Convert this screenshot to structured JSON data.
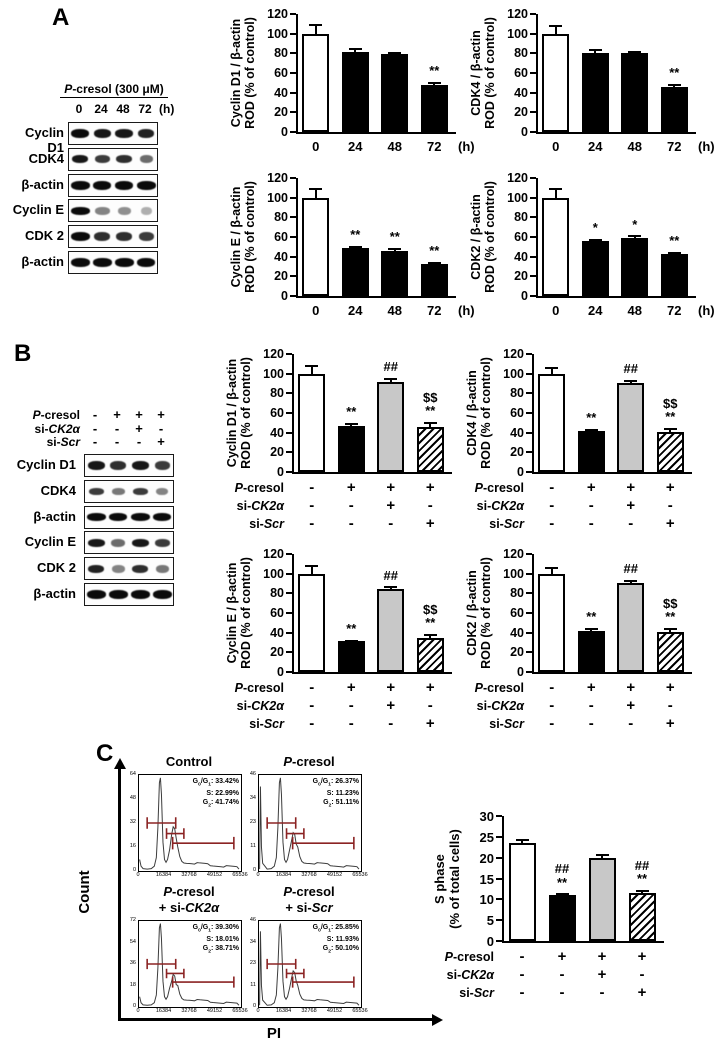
{
  "panel_a": {
    "label": "A",
    "blot": {
      "header": "P-cresol (300 μM)",
      "time_ticks": [
        "0",
        "24",
        "48",
        "72"
      ],
      "time_unit": "(h)",
      "rows": [
        "Cyclin D1",
        "CDK4",
        "β-actin",
        "Cyclin E",
        "CDK 2",
        "β-actin"
      ]
    }
  },
  "panel_b": {
    "label": "B",
    "blot": {
      "treatments": [
        {
          "label": "P-cresol",
          "cells": [
            "-",
            "+",
            "+",
            "+"
          ]
        },
        {
          "label": "si-CK2α",
          "cells": [
            "-",
            "-",
            "+",
            "-"
          ]
        },
        {
          "label": "si-Scr",
          "cells": [
            "-",
            "-",
            "-",
            "+"
          ]
        }
      ],
      "rows": [
        "Cyclin D1",
        "CDK4",
        "β-actin",
        "Cyclin E",
        "CDK 2",
        "β-actin"
      ]
    }
  },
  "panel_c": {
    "label": "C",
    "flow_xlabel": "PI",
    "flow_ylabel": "Count"
  },
  "chart_data": [
    {
      "id": "a-cyclin-d1",
      "panel": "A",
      "type": "bar",
      "ylabel": [
        "Cyclin D1 / β-actin",
        "ROD (% of control)"
      ],
      "ylim": [
        0,
        120
      ],
      "ytick_step": 20,
      "x_axis": {
        "type": "time",
        "ticks": [
          "0",
          "24",
          "48",
          "72"
        ],
        "unit": "(h)"
      },
      "bars": [
        {
          "value": 100,
          "err": 10,
          "fill": "white",
          "sig": []
        },
        {
          "value": 81,
          "err": 4,
          "fill": "black",
          "sig": []
        },
        {
          "value": 79,
          "err": 2,
          "fill": "black",
          "sig": []
        },
        {
          "value": 48,
          "err": 3,
          "fill": "black",
          "sig": [
            "**"
          ]
        }
      ]
    },
    {
      "id": "a-cdk4",
      "panel": "A",
      "type": "bar",
      "ylabel": [
        "CDK4 / β-actin",
        "ROD (% of control)"
      ],
      "ylim": [
        0,
        120
      ],
      "ytick_step": 20,
      "x_axis": {
        "type": "time",
        "ticks": [
          "0",
          "24",
          "48",
          "72"
        ],
        "unit": "(h)"
      },
      "bars": [
        {
          "value": 100,
          "err": 9,
          "fill": "white",
          "sig": []
        },
        {
          "value": 80,
          "err": 4,
          "fill": "black",
          "sig": []
        },
        {
          "value": 80,
          "err": 2,
          "fill": "black",
          "sig": []
        },
        {
          "value": 46,
          "err": 3,
          "fill": "black",
          "sig": [
            "**"
          ]
        }
      ]
    },
    {
      "id": "a-cyclin-e",
      "panel": "A",
      "type": "bar",
      "ylabel": [
        "Cyclin E / β-actin",
        "ROD (% of control)"
      ],
      "ylim": [
        0,
        120
      ],
      "ytick_step": 20,
      "x_axis": {
        "type": "time",
        "ticks": [
          "0",
          "24",
          "48",
          "72"
        ],
        "unit": "(h)"
      },
      "bars": [
        {
          "value": 100,
          "err": 10,
          "fill": "white",
          "sig": []
        },
        {
          "value": 49,
          "err": 2,
          "fill": "black",
          "sig": [
            "**"
          ]
        },
        {
          "value": 46,
          "err": 3,
          "fill": "black",
          "sig": [
            "**"
          ]
        },
        {
          "value": 33,
          "err": 2,
          "fill": "black",
          "sig": [
            "**"
          ]
        }
      ]
    },
    {
      "id": "a-cdk2",
      "panel": "A",
      "type": "bar",
      "ylabel": [
        "CDK2 / β-actin",
        "ROD (% of control)"
      ],
      "ylim": [
        0,
        120
      ],
      "ytick_step": 20,
      "x_axis": {
        "type": "time",
        "ticks": [
          "0",
          "24",
          "48",
          "72"
        ],
        "unit": "(h)"
      },
      "bars": [
        {
          "value": 100,
          "err": 10,
          "fill": "white",
          "sig": []
        },
        {
          "value": 56,
          "err": 2,
          "fill": "black",
          "sig": [
            "*"
          ]
        },
        {
          "value": 59,
          "err": 3,
          "fill": "black",
          "sig": [
            "*"
          ]
        },
        {
          "value": 43,
          "err": 2,
          "fill": "black",
          "sig": [
            "**"
          ]
        }
      ]
    },
    {
      "id": "b-cyclin-d1",
      "panel": "B",
      "type": "bar",
      "ylabel": [
        "Cyclin D1 / β-actin",
        "ROD (% of control)"
      ],
      "ylim": [
        0,
        120
      ],
      "ytick_step": 20,
      "x_axis": {
        "type": "table",
        "rows": [
          {
            "label": "P-cresol",
            "cells": [
              "-",
              "+",
              "+",
              "+"
            ]
          },
          {
            "label": "si-CK2α",
            "cells": [
              "-",
              "-",
              "+",
              "-"
            ]
          },
          {
            "label": "si-Scr",
            "cells": [
              "-",
              "-",
              "-",
              "+"
            ]
          }
        ]
      },
      "bars": [
        {
          "value": 100,
          "err": 9,
          "fill": "white",
          "sig": []
        },
        {
          "value": 47,
          "err": 3,
          "fill": "black",
          "sig": [
            "**"
          ]
        },
        {
          "value": 92,
          "err": 4,
          "fill": "gray",
          "sig": [
            "##"
          ]
        },
        {
          "value": 46,
          "err": 5,
          "fill": "hatch",
          "sig": [
            "$$",
            "**"
          ]
        }
      ]
    },
    {
      "id": "b-cdk4",
      "panel": "B",
      "type": "bar",
      "ylabel": [
        "CDK4 / β-actin",
        "ROD (% of control)"
      ],
      "ylim": [
        0,
        120
      ],
      "ytick_step": 20,
      "x_axis": {
        "type": "table",
        "rows": [
          {
            "label": "P-cresol",
            "cells": [
              "-",
              "+",
              "+",
              "+"
            ]
          },
          {
            "label": "si-CK2α",
            "cells": [
              "-",
              "-",
              "+",
              "-"
            ]
          },
          {
            "label": "si-Scr",
            "cells": [
              "-",
              "-",
              "-",
              "+"
            ]
          }
        ]
      },
      "bars": [
        {
          "value": 100,
          "err": 7,
          "fill": "white",
          "sig": []
        },
        {
          "value": 42,
          "err": 2,
          "fill": "black",
          "sig": [
            "**"
          ]
        },
        {
          "value": 91,
          "err": 3,
          "fill": "gray",
          "sig": [
            "##"
          ]
        },
        {
          "value": 41,
          "err": 4,
          "fill": "hatch",
          "sig": [
            "$$",
            "**"
          ]
        }
      ]
    },
    {
      "id": "b-cyclin-e",
      "panel": "B",
      "type": "bar",
      "ylabel": [
        "Cyclin E / β-actin",
        "ROD (% of control)"
      ],
      "ylim": [
        0,
        120
      ],
      "ytick_step": 20,
      "x_axis": {
        "type": "table",
        "rows": [
          {
            "label": "P-cresol",
            "cells": [
              "-",
              "+",
              "+",
              "+"
            ]
          },
          {
            "label": "si-CK2α",
            "cells": [
              "-",
              "-",
              "+",
              "-"
            ]
          },
          {
            "label": "si-Scr",
            "cells": [
              "-",
              "-",
              "-",
              "+"
            ]
          }
        ]
      },
      "bars": [
        {
          "value": 100,
          "err": 9,
          "fill": "white",
          "sig": []
        },
        {
          "value": 32,
          "err": 1,
          "fill": "black",
          "sig": [
            "**"
          ]
        },
        {
          "value": 84,
          "err": 3,
          "fill": "gray",
          "sig": [
            "##"
          ]
        },
        {
          "value": 35,
          "err": 4,
          "fill": "hatch",
          "sig": [
            "$$",
            "**"
          ]
        }
      ]
    },
    {
      "id": "b-cdk2",
      "panel": "B",
      "type": "bar",
      "ylabel": [
        "CDK2 / β-actin",
        "ROD (% of control)"
      ],
      "ylim": [
        0,
        120
      ],
      "ytick_step": 20,
      "x_axis": {
        "type": "table",
        "rows": [
          {
            "label": "P-cresol",
            "cells": [
              "-",
              "+",
              "+",
              "+"
            ]
          },
          {
            "label": "si-CK2α",
            "cells": [
              "-",
              "-",
              "+",
              "-"
            ]
          },
          {
            "label": "si-Scr",
            "cells": [
              "-",
              "-",
              "-",
              "+"
            ]
          }
        ]
      },
      "bars": [
        {
          "value": 100,
          "err": 7,
          "fill": "white",
          "sig": []
        },
        {
          "value": 42,
          "err": 3,
          "fill": "black",
          "sig": [
            "**"
          ]
        },
        {
          "value": 91,
          "err": 3,
          "fill": "gray",
          "sig": [
            "##"
          ]
        },
        {
          "value": 41,
          "err": 4,
          "fill": "hatch",
          "sig": [
            "$$",
            "**"
          ]
        }
      ]
    },
    {
      "id": "c-s-phase",
      "panel": "C",
      "type": "bar",
      "ylabel": [
        "S phase",
        "(% of total cells)"
      ],
      "ylim": [
        0,
        30
      ],
      "ytick_step": 5,
      "x_axis": {
        "type": "table",
        "rows": [
          {
            "label": "P-cresol",
            "cells": [
              "-",
              "+",
              "+",
              "+"
            ]
          },
          {
            "label": "si-CK2α",
            "cells": [
              "-",
              "-",
              "+",
              "-"
            ]
          },
          {
            "label": "si-Scr",
            "cells": [
              "-",
              "-",
              "-",
              "+"
            ]
          }
        ]
      },
      "bars": [
        {
          "value": 23.5,
          "err": 1,
          "fill": "white",
          "sig": []
        },
        {
          "value": 11,
          "err": 0.5,
          "fill": "black",
          "sig": [
            "##",
            "**"
          ]
        },
        {
          "value": 20,
          "err": 0.8,
          "fill": "gray",
          "sig": []
        },
        {
          "value": 11.5,
          "err": 0.8,
          "fill": "hatch",
          "sig": [
            "##",
            "**"
          ]
        }
      ]
    },
    {
      "id": "c-facs-control",
      "panel": "C",
      "type": "histogram",
      "title": [
        "Control"
      ],
      "stats": [
        {
          "label": "G0/G1",
          "value": "33.42%"
        },
        {
          "label": "S",
          "value": "22.99%"
        },
        {
          "label": "G2",
          "value": "41.74%"
        }
      ],
      "yticks": [
        "64",
        "48",
        "32",
        "16",
        "0"
      ],
      "xticks": [
        "0",
        "16384",
        "32768",
        "49152",
        "65536"
      ]
    },
    {
      "id": "c-facs-pcresol",
      "panel": "C",
      "type": "histogram",
      "title": [
        "P-cresol"
      ],
      "stats": [
        {
          "label": "G0/G1",
          "value": "26.37%"
        },
        {
          "label": "S",
          "value": "11.23%"
        },
        {
          "label": "G2",
          "value": "51.11%"
        }
      ],
      "yticks": [
        "46",
        "34",
        "23",
        "11",
        "0"
      ],
      "xticks": [
        "0",
        "16384",
        "32768",
        "49152",
        "65536"
      ]
    },
    {
      "id": "c-facs-si-ck2a",
      "panel": "C",
      "type": "histogram",
      "title": [
        "P-cresol",
        "+ si-CK2α"
      ],
      "stats": [
        {
          "label": "G0/G1",
          "value": "39.30%"
        },
        {
          "label": "S",
          "value": "18.01%"
        },
        {
          "label": "G2",
          "value": "38.71%"
        }
      ],
      "yticks": [
        "72",
        "54",
        "36",
        "18",
        "0"
      ],
      "xticks": [
        "0",
        "16384",
        "32768",
        "49152",
        "65536"
      ]
    },
    {
      "id": "c-facs-si-scr",
      "panel": "C",
      "type": "histogram",
      "title": [
        "P-cresol",
        "+ si-Scr"
      ],
      "stats": [
        {
          "label": "G0/G1",
          "value": "25.85%"
        },
        {
          "label": "S",
          "value": "11.93%"
        },
        {
          "label": "G2",
          "value": "50.10%"
        }
      ],
      "yticks": [
        "46",
        "34",
        "23",
        "11",
        "0"
      ],
      "xticks": [
        "0",
        "16384",
        "32768",
        "49152",
        "65536"
      ]
    }
  ]
}
